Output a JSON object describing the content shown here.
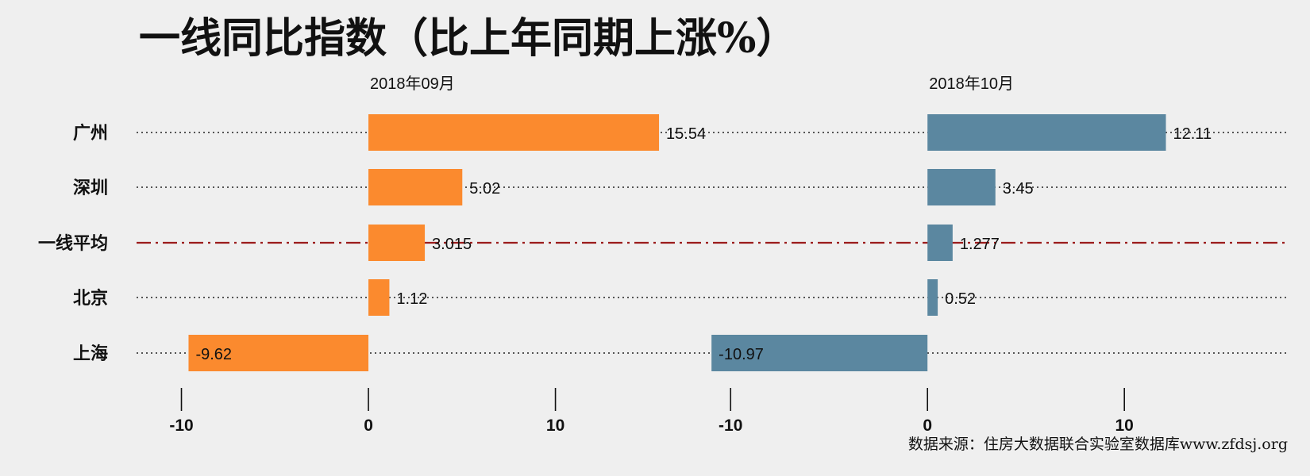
{
  "title": "一线同比指数（比上年同期上涨%）",
  "source": "数据来源：住房大数据联合实验室数据库www.zfdsj.org",
  "colors": {
    "background": "#efefef",
    "panel_left": "#fb8a2e",
    "panel_right": "#5b87a0",
    "average_line": "#9b1c1c",
    "dotted_line": "#222222",
    "text": "#111111"
  },
  "chart_data": {
    "type": "bar",
    "orientation": "horizontal",
    "categories": [
      "广州",
      "深圳",
      "一线平均",
      "北京",
      "上海"
    ],
    "average_category": "一线平均",
    "panels": [
      {
        "name": "2018年09月",
        "values": [
          15.54,
          5.02,
          3.015,
          1.12,
          -9.62
        ],
        "value_labels": [
          "15.54",
          "5.02",
          "3.015",
          "1.12",
          "-9.62"
        ],
        "xlim": [
          -12.4,
          18
        ],
        "xticks": [
          -10,
          0,
          10
        ],
        "xtick_labels": [
          "-10",
          "0",
          "10"
        ]
      },
      {
        "name": "2018年10月",
        "values": [
          12.11,
          3.45,
          1.277,
          0.52,
          -10.97
        ],
        "value_labels": [
          "12.11",
          "3.45",
          "1.277",
          "0.52",
          "-10.97"
        ],
        "xlim": [
          -11.3,
          18.3
        ],
        "xticks": [
          -10,
          0,
          10
        ],
        "xtick_labels": [
          "-10",
          "0",
          "10"
        ]
      }
    ],
    "grid": false,
    "legend": "none"
  }
}
